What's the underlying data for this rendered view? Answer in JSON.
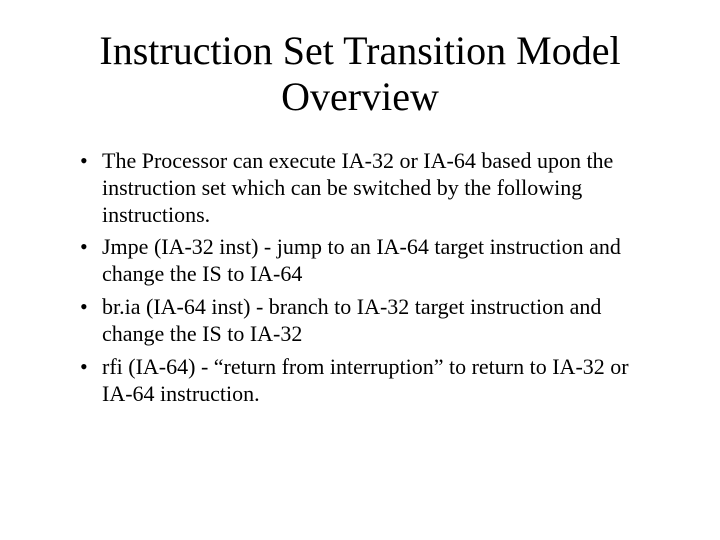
{
  "slide": {
    "title": "Instruction Set Transition Model Overview",
    "title_color": "#000000",
    "title_fontsize": 40,
    "body_color": "#000000",
    "body_fontsize": 22,
    "background_color": "#ffffff",
    "bullets": [
      "The Processor can execute IA-32 or IA-64 based upon the instruction set which can be switched by the following instructions.",
      "Jmpe (IA-32 inst) - jump to an IA-64 target instruction and change the IS to IA-64",
      "br.ia (IA-64 inst) - branch to IA-32 target instruction and change the IS to IA-32",
      "rfi (IA-64) - “return from interruption” to return to IA-32 or IA-64 instruction."
    ]
  }
}
